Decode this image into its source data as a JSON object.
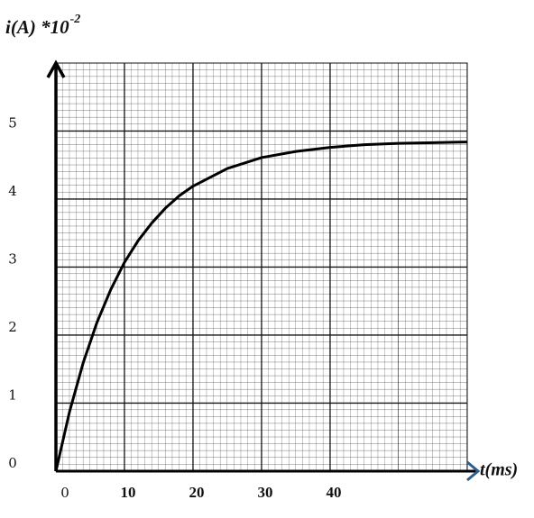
{
  "chart_data": {
    "type": "line",
    "y_label": "i(A) *10",
    "y_label_exponent": "-2",
    "x_label": "t(ms)",
    "x": [
      0,
      2,
      4,
      6,
      8,
      10,
      12,
      14,
      16,
      18,
      20,
      25,
      30,
      35,
      40,
      45,
      50,
      55,
      60
    ],
    "series": [
      {
        "color": "#000000",
        "values": [
          0,
          0.88,
          1.6,
          2.19,
          2.67,
          3.07,
          3.39,
          3.65,
          3.87,
          4.05,
          4.19,
          4.45,
          4.61,
          4.7,
          4.76,
          4.8,
          4.82,
          4.83,
          4.84
        ]
      }
    ],
    "xlim": [
      0,
      60
    ],
    "ylim": [
      0,
      6
    ],
    "xticks": [
      0,
      10,
      20,
      30,
      40
    ],
    "yticks": [
      0,
      1,
      2,
      3,
      4,
      5
    ],
    "grid": true
  }
}
